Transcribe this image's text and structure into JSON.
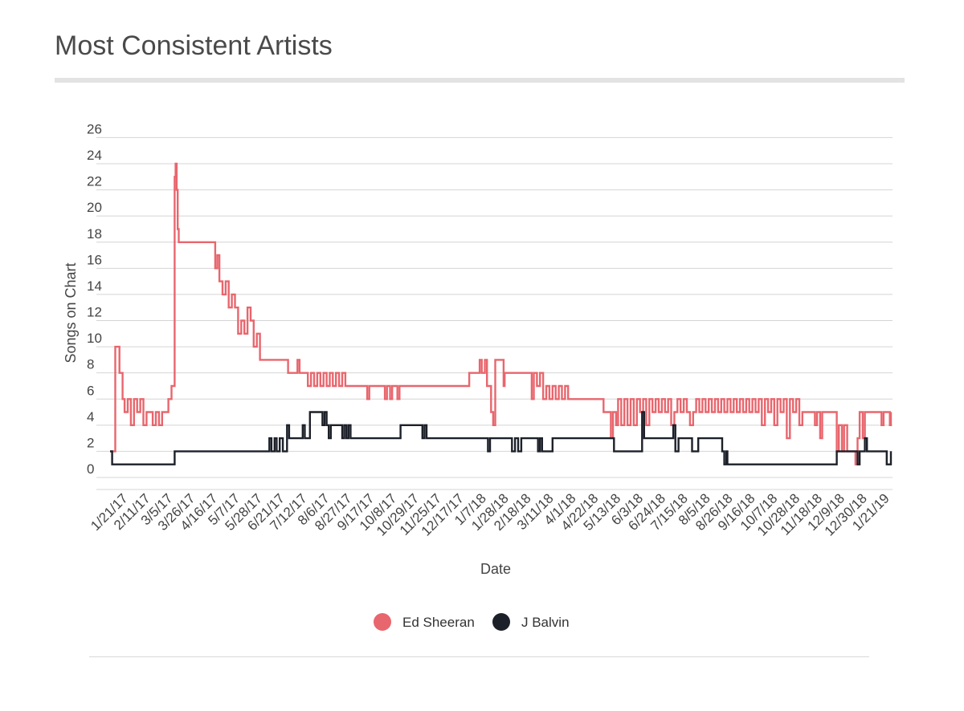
{
  "chart_data": {
    "type": "line",
    "title": "Most Consistent Artists",
    "xlabel": "Date",
    "ylabel": "Songs on Chart",
    "ylim": [
      0,
      26
    ],
    "y_ticks": [
      0,
      2,
      4,
      6,
      8,
      10,
      12,
      14,
      16,
      18,
      20,
      22,
      24,
      26
    ],
    "x_range": [
      "2017-01-01",
      "2019-01-21"
    ],
    "x_tick_labels": [
      "1/21/17",
      "2/11/17",
      "3/5/17",
      "3/26/17",
      "4/16/17",
      "5/7/17",
      "5/28/17",
      "6/21/17",
      "7/12/17",
      "8/6/17",
      "8/27/17",
      "9/17/17",
      "10/8/17",
      "10/29/17",
      "11/25/17",
      "12/17/17",
      "1/7/18",
      "1/28/18",
      "2/18/18",
      "3/11/18",
      "4/1/18",
      "4/22/18",
      "5/13/18",
      "6/3/18",
      "6/24/18",
      "7/15/18",
      "8/5/18",
      "8/26/18",
      "9/16/18",
      "10/7/18",
      "10/28/18",
      "11/18/18",
      "12/9/18",
      "12/30/18",
      "1/21/19"
    ],
    "grid": true,
    "legend_position": "bottom-center",
    "series": [
      {
        "name": "Ed Sheeran",
        "color": "#e8666d",
        "points": [
          [
            "2017-01-01",
            2
          ],
          [
            "2017-01-04",
            2
          ],
          [
            "2017-01-06",
            10
          ],
          [
            "2017-01-08",
            10
          ],
          [
            "2017-01-10",
            8
          ],
          [
            "2017-01-13",
            6
          ],
          [
            "2017-01-15",
            5
          ],
          [
            "2017-01-18",
            6
          ],
          [
            "2017-01-21",
            4
          ],
          [
            "2017-01-24",
            6
          ],
          [
            "2017-01-27",
            5
          ],
          [
            "2017-01-30",
            6
          ],
          [
            "2017-02-02",
            4
          ],
          [
            "2017-02-05",
            5
          ],
          [
            "2017-02-08",
            5
          ],
          [
            "2017-02-11",
            4
          ],
          [
            "2017-02-14",
            5
          ],
          [
            "2017-02-17",
            4
          ],
          [
            "2017-02-20",
            5
          ],
          [
            "2017-02-24",
            5
          ],
          [
            "2017-02-26",
            6
          ],
          [
            "2017-02-28",
            6
          ],
          [
            "2017-03-01",
            7
          ],
          [
            "2017-03-03",
            7
          ],
          [
            "2017-03-04",
            23
          ],
          [
            "2017-03-05",
            24
          ],
          [
            "2017-03-06",
            22
          ],
          [
            "2017-03-07",
            19
          ],
          [
            "2017-03-08",
            18
          ],
          [
            "2017-03-12",
            18
          ],
          [
            "2017-04-10",
            18
          ],
          [
            "2017-04-12",
            16
          ],
          [
            "2017-04-14",
            17
          ],
          [
            "2017-04-16",
            15
          ],
          [
            "2017-04-19",
            14
          ],
          [
            "2017-04-22",
            15
          ],
          [
            "2017-04-25",
            13
          ],
          [
            "2017-04-28",
            14
          ],
          [
            "2017-05-01",
            13
          ],
          [
            "2017-05-04",
            11
          ],
          [
            "2017-05-07",
            12
          ],
          [
            "2017-05-10",
            11
          ],
          [
            "2017-05-13",
            13
          ],
          [
            "2017-05-16",
            12
          ],
          [
            "2017-05-19",
            10
          ],
          [
            "2017-05-22",
            11
          ],
          [
            "2017-05-25",
            9
          ],
          [
            "2017-05-28",
            9
          ],
          [
            "2017-06-18",
            9
          ],
          [
            "2017-06-21",
            8
          ],
          [
            "2017-06-28",
            8
          ],
          [
            "2017-06-30",
            9
          ],
          [
            "2017-07-02",
            8
          ],
          [
            "2017-07-08",
            8
          ],
          [
            "2017-07-10",
            7
          ],
          [
            "2017-07-13",
            8
          ],
          [
            "2017-07-16",
            7
          ],
          [
            "2017-07-19",
            8
          ],
          [
            "2017-07-22",
            7
          ],
          [
            "2017-07-25",
            8
          ],
          [
            "2017-07-28",
            7
          ],
          [
            "2017-07-31",
            8
          ],
          [
            "2017-08-03",
            7
          ],
          [
            "2017-08-06",
            8
          ],
          [
            "2017-08-09",
            7
          ],
          [
            "2017-08-12",
            8
          ],
          [
            "2017-08-15",
            7
          ],
          [
            "2017-09-03",
            7
          ],
          [
            "2017-09-05",
            6
          ],
          [
            "2017-09-07",
            7
          ],
          [
            "2017-09-20",
            7
          ],
          [
            "2017-09-22",
            6
          ],
          [
            "2017-09-24",
            7
          ],
          [
            "2017-09-27",
            6
          ],
          [
            "2017-09-29",
            7
          ],
          [
            "2017-10-02",
            7
          ],
          [
            "2017-10-04",
            6
          ],
          [
            "2017-10-06",
            7
          ],
          [
            "2017-12-10",
            7
          ],
          [
            "2017-12-12",
            8
          ],
          [
            "2017-12-20",
            8
          ],
          [
            "2017-12-22",
            9
          ],
          [
            "2017-12-24",
            8
          ],
          [
            "2017-12-27",
            9
          ],
          [
            "2017-12-29",
            7
          ],
          [
            "2018-01-02",
            5
          ],
          [
            "2018-01-04",
            4
          ],
          [
            "2018-01-06",
            9
          ],
          [
            "2018-01-12",
            9
          ],
          [
            "2018-01-14",
            7
          ],
          [
            "2018-01-15",
            8
          ],
          [
            "2018-02-08",
            8
          ],
          [
            "2018-02-10",
            6
          ],
          [
            "2018-02-12",
            8
          ],
          [
            "2018-02-15",
            7
          ],
          [
            "2018-02-18",
            8
          ],
          [
            "2018-02-21",
            6
          ],
          [
            "2018-02-24",
            7
          ],
          [
            "2018-02-27",
            6
          ],
          [
            "2018-03-02",
            7
          ],
          [
            "2018-03-05",
            6
          ],
          [
            "2018-03-08",
            7
          ],
          [
            "2018-03-11",
            6
          ],
          [
            "2018-03-14",
            7
          ],
          [
            "2018-03-17",
            6
          ],
          [
            "2018-04-18",
            6
          ],
          [
            "2018-04-20",
            5
          ],
          [
            "2018-04-25",
            5
          ],
          [
            "2018-04-27",
            3
          ],
          [
            "2018-04-29",
            5
          ],
          [
            "2018-05-02",
            4
          ],
          [
            "2018-05-04",
            6
          ],
          [
            "2018-05-07",
            4
          ],
          [
            "2018-05-10",
            6
          ],
          [
            "2018-05-13",
            4
          ],
          [
            "2018-05-16",
            6
          ],
          [
            "2018-05-19",
            4
          ],
          [
            "2018-05-22",
            6
          ],
          [
            "2018-05-25",
            5
          ],
          [
            "2018-05-28",
            6
          ],
          [
            "2018-05-31",
            4
          ],
          [
            "2018-06-03",
            6
          ],
          [
            "2018-06-06",
            5
          ],
          [
            "2018-06-09",
            6
          ],
          [
            "2018-06-12",
            5
          ],
          [
            "2018-06-15",
            6
          ],
          [
            "2018-06-18",
            5
          ],
          [
            "2018-06-21",
            6
          ],
          [
            "2018-06-24",
            4
          ],
          [
            "2018-06-27",
            5
          ],
          [
            "2018-06-30",
            6
          ],
          [
            "2018-07-03",
            5
          ],
          [
            "2018-07-06",
            6
          ],
          [
            "2018-07-09",
            5
          ],
          [
            "2018-07-12",
            4
          ],
          [
            "2018-07-15",
            5
          ],
          [
            "2018-07-18",
            6
          ],
          [
            "2018-07-21",
            5
          ],
          [
            "2018-07-24",
            6
          ],
          [
            "2018-07-27",
            5
          ],
          [
            "2018-07-30",
            6
          ],
          [
            "2018-08-02",
            5
          ],
          [
            "2018-08-05",
            6
          ],
          [
            "2018-08-08",
            5
          ],
          [
            "2018-08-11",
            6
          ],
          [
            "2018-08-14",
            5
          ],
          [
            "2018-08-17",
            6
          ],
          [
            "2018-08-20",
            5
          ],
          [
            "2018-08-23",
            6
          ],
          [
            "2018-08-26",
            5
          ],
          [
            "2018-08-29",
            6
          ],
          [
            "2018-09-01",
            5
          ],
          [
            "2018-09-04",
            6
          ],
          [
            "2018-09-07",
            5
          ],
          [
            "2018-09-10",
            6
          ],
          [
            "2018-09-13",
            5
          ],
          [
            "2018-09-16",
            6
          ],
          [
            "2018-09-19",
            4
          ],
          [
            "2018-09-22",
            6
          ],
          [
            "2018-09-25",
            5
          ],
          [
            "2018-09-28",
            6
          ],
          [
            "2018-10-01",
            4
          ],
          [
            "2018-10-04",
            6
          ],
          [
            "2018-10-07",
            5
          ],
          [
            "2018-10-10",
            6
          ],
          [
            "2018-10-13",
            3
          ],
          [
            "2018-10-16",
            6
          ],
          [
            "2018-10-19",
            5
          ],
          [
            "2018-10-22",
            6
          ],
          [
            "2018-10-25",
            4
          ],
          [
            "2018-10-28",
            5
          ],
          [
            "2018-11-07",
            5
          ],
          [
            "2018-11-09",
            4
          ],
          [
            "2018-11-11",
            5
          ],
          [
            "2018-11-14",
            3
          ],
          [
            "2018-11-16",
            5
          ],
          [
            "2018-11-28",
            5
          ],
          [
            "2018-11-30",
            2
          ],
          [
            "2018-12-02",
            4
          ],
          [
            "2018-12-05",
            2
          ],
          [
            "2018-12-07",
            4
          ],
          [
            "2018-12-10",
            2
          ],
          [
            "2018-12-16",
            2
          ],
          [
            "2018-12-18",
            1
          ],
          [
            "2018-12-20",
            3
          ],
          [
            "2018-12-22",
            5
          ],
          [
            "2018-12-25",
            3
          ],
          [
            "2018-12-27",
            5
          ],
          [
            "2019-01-10",
            5
          ],
          [
            "2019-01-12",
            4
          ],
          [
            "2019-01-14",
            5
          ],
          [
            "2019-01-18",
            5
          ],
          [
            "2019-01-20",
            4
          ],
          [
            "2019-01-21",
            5
          ]
        ]
      },
      {
        "name": "J Balvin",
        "color": "#1c2029",
        "points": [
          [
            "2017-01-01",
            2
          ],
          [
            "2017-01-03",
            1
          ],
          [
            "2017-03-03",
            1
          ],
          [
            "2017-03-04",
            2
          ],
          [
            "2017-06-01",
            2
          ],
          [
            "2017-06-03",
            3
          ],
          [
            "2017-06-05",
            2
          ],
          [
            "2017-06-08",
            3
          ],
          [
            "2017-06-10",
            2
          ],
          [
            "2017-06-13",
            3
          ],
          [
            "2017-06-16",
            2
          ],
          [
            "2017-06-20",
            4
          ],
          [
            "2017-06-22",
            3
          ],
          [
            "2017-07-03",
            3
          ],
          [
            "2017-07-05",
            4
          ],
          [
            "2017-07-07",
            3
          ],
          [
            "2017-07-10",
            3
          ],
          [
            "2017-07-12",
            5
          ],
          [
            "2017-07-22",
            5
          ],
          [
            "2017-07-24",
            4
          ],
          [
            "2017-07-26",
            5
          ],
          [
            "2017-07-28",
            4
          ],
          [
            "2017-07-30",
            3
          ],
          [
            "2017-08-01",
            4
          ],
          [
            "2017-08-10",
            4
          ],
          [
            "2017-08-12",
            3
          ],
          [
            "2017-08-14",
            4
          ],
          [
            "2017-08-16",
            3
          ],
          [
            "2017-08-18",
            4
          ],
          [
            "2017-08-20",
            3
          ],
          [
            "2017-10-05",
            3
          ],
          [
            "2017-10-07",
            4
          ],
          [
            "2017-10-26",
            4
          ],
          [
            "2017-10-28",
            3
          ],
          [
            "2017-10-30",
            4
          ],
          [
            "2017-11-01",
            3
          ],
          [
            "2017-12-28",
            3
          ],
          [
            "2017-12-30",
            2
          ],
          [
            "2018-01-01",
            3
          ],
          [
            "2018-01-20",
            3
          ],
          [
            "2018-01-22",
            2
          ],
          [
            "2018-01-25",
            3
          ],
          [
            "2018-01-28",
            2
          ],
          [
            "2018-01-31",
            3
          ],
          [
            "2018-02-14",
            3
          ],
          [
            "2018-02-16",
            2
          ],
          [
            "2018-02-18",
            3
          ],
          [
            "2018-02-20",
            2
          ],
          [
            "2018-03-01",
            2
          ],
          [
            "2018-03-02",
            3
          ],
          [
            "2018-04-28",
            3
          ],
          [
            "2018-04-30",
            2
          ],
          [
            "2018-05-03",
            2
          ],
          [
            "2018-05-05",
            2
          ],
          [
            "2018-05-25",
            2
          ],
          [
            "2018-05-27",
            5
          ],
          [
            "2018-05-29",
            3
          ],
          [
            "2018-06-24",
            3
          ],
          [
            "2018-06-26",
            4
          ],
          [
            "2018-06-28",
            2
          ],
          [
            "2018-07-01",
            3
          ],
          [
            "2018-07-12",
            3
          ],
          [
            "2018-07-14",
            2
          ],
          [
            "2018-07-18",
            2
          ],
          [
            "2018-07-20",
            3
          ],
          [
            "2018-08-10",
            3
          ],
          [
            "2018-08-12",
            2
          ],
          [
            "2018-08-14",
            1
          ],
          [
            "2018-08-16",
            2
          ],
          [
            "2018-08-17",
            1
          ],
          [
            "2018-11-28",
            1
          ],
          [
            "2018-11-30",
            2
          ],
          [
            "2018-12-18",
            2
          ],
          [
            "2018-12-20",
            1
          ],
          [
            "2018-12-22",
            2
          ],
          [
            "2018-12-25",
            2
          ],
          [
            "2018-12-27",
            3
          ],
          [
            "2018-12-29",
            2
          ],
          [
            "2019-01-15",
            2
          ],
          [
            "2019-01-17",
            1
          ],
          [
            "2019-01-20",
            1
          ],
          [
            "2019-01-21",
            2
          ]
        ]
      }
    ]
  }
}
